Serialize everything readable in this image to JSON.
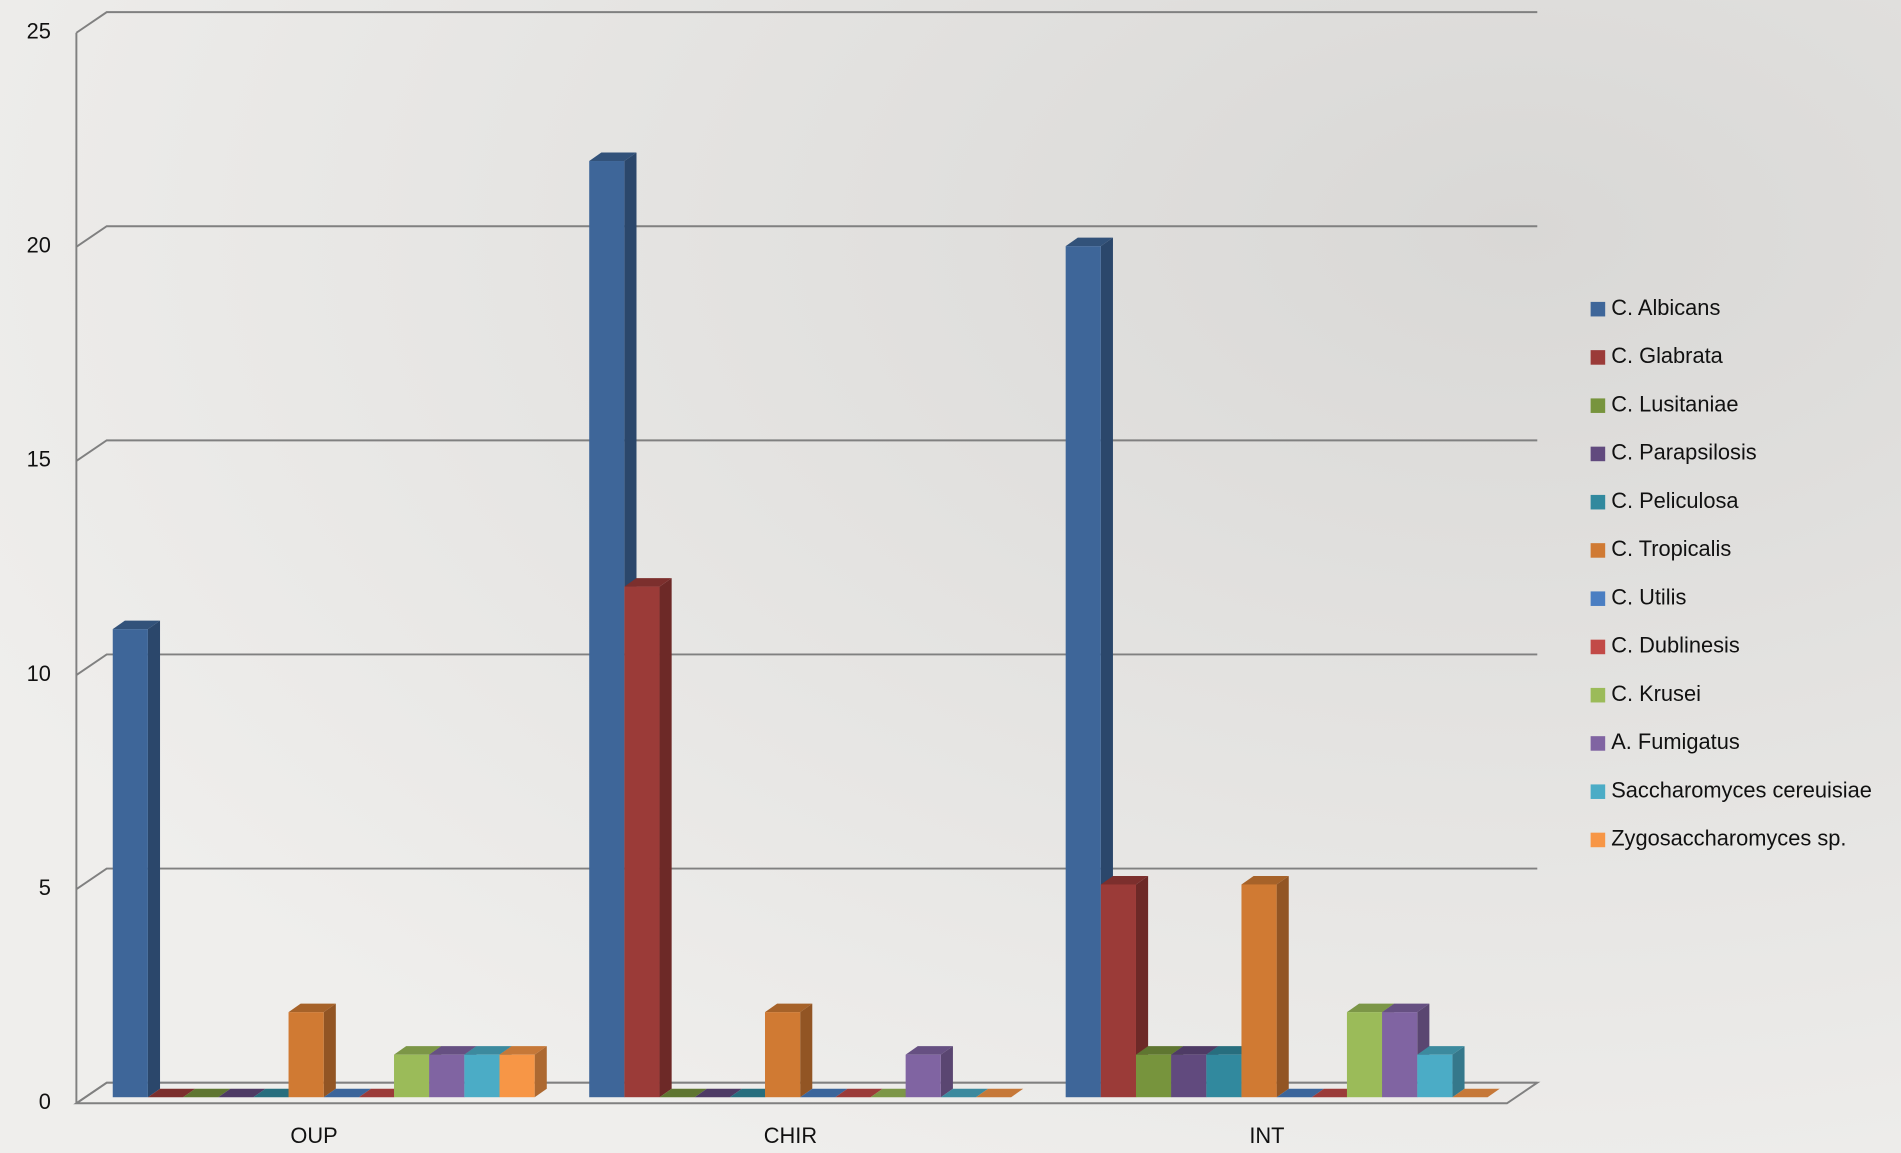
{
  "chart_data": {
    "type": "bar3d",
    "categories": [
      "OUP",
      "CHIR",
      "INT"
    ],
    "series": [
      {
        "name": "C. Albicans",
        "color": "#3e6699",
        "values": [
          11,
          22,
          20
        ]
      },
      {
        "name": "C. Glabrata",
        "color": "#9b3b38",
        "values": [
          0,
          12,
          5
        ]
      },
      {
        "name": "C. Lusitaniae",
        "color": "#77943d",
        "values": [
          0,
          0,
          1
        ]
      },
      {
        "name": "C. Parapsilosis",
        "color": "#614a7e",
        "values": [
          0,
          0,
          1
        ]
      },
      {
        "name": "C. Peliculosa",
        "color": "#31899e",
        "values": [
          0,
          0,
          1
        ]
      },
      {
        "name": "C. Tropicalis",
        "color": "#d07a33",
        "values": [
          2,
          2,
          5
        ]
      },
      {
        "name": "C. Utilis",
        "color": "#4a7ec2",
        "values": [
          0,
          0,
          0
        ]
      },
      {
        "name": "C. Dublinesis",
        "color": "#c24a47",
        "values": [
          0,
          0,
          0
        ]
      },
      {
        "name": "C. Krusei",
        "color": "#9bbb59",
        "values": [
          1,
          0,
          2
        ]
      },
      {
        "name": "A. Fumigatus",
        "color": "#8064a2",
        "values": [
          1,
          1,
          2
        ]
      },
      {
        "name": "Saccharomyces cereuisiae",
        "color": "#4bacc6",
        "values": [
          1,
          0,
          1
        ]
      },
      {
        "name": "Zygosaccharomyces sp.",
        "color": "#f79646",
        "values": [
          1,
          0,
          0
        ]
      }
    ],
    "ylim": [
      0,
      25
    ],
    "yticks": [
      0,
      5,
      10,
      15,
      20,
      25
    ],
    "grid": true,
    "legend": "right"
  }
}
